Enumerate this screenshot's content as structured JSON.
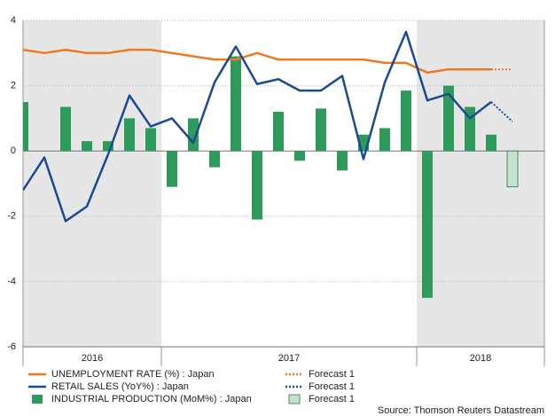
{
  "chart_data": {
    "type": "bar",
    "categories": [
      "2016",
      "2016",
      "2016",
      "2016",
      "2016",
      "2016",
      "2016",
      "2017",
      "2017",
      "2017",
      "2017",
      "2017",
      "2017",
      "2017",
      "2017",
      "2017",
      "2017",
      "2017",
      "2017",
      "2018",
      "2018",
      "2018",
      "2018",
      "2018"
    ],
    "ylim": [
      -6,
      4
    ],
    "yticks": [
      -6,
      -4,
      -2,
      0,
      2,
      4
    ],
    "grid": true,
    "series": [
      {
        "name": "UNEMPLOYMENT RATE (%) : Japan",
        "kind": "line",
        "style": "solid",
        "color": "#f07820",
        "values": [
          3.1,
          3.0,
          3.1,
          3.0,
          3.0,
          3.1,
          3.1,
          3.0,
          2.9,
          2.8,
          2.8,
          3.0,
          2.8,
          2.8,
          2.8,
          2.8,
          2.8,
          2.7,
          2.7,
          2.4,
          2.5,
          2.5,
          2.5,
          null
        ]
      },
      {
        "name": "RETAIL SALES (YoY%) : Japan",
        "kind": "line",
        "style": "solid",
        "color": "#1a4a94",
        "values": [
          -1.2,
          -0.2,
          -2.15,
          -1.7,
          -0.1,
          1.7,
          0.75,
          1.0,
          0.25,
          2.1,
          3.2,
          2.05,
          2.2,
          1.85,
          1.85,
          2.3,
          -0.25,
          2.1,
          3.65,
          1.55,
          1.75,
          1.0,
          1.5,
          null
        ]
      },
      {
        "name": "INDUSTRIAL PRODUCTION (MoM%) : Japan",
        "kind": "bar",
        "style": "solid",
        "color": "#2e9a5c",
        "values": [
          1.5,
          0,
          1.35,
          0.3,
          0.3,
          1.0,
          0.7,
          -1.1,
          1.0,
          -0.5,
          2.9,
          -2.1,
          1.2,
          -0.3,
          1.3,
          -0.6,
          0.5,
          0.7,
          1.85,
          -4.5,
          2.0,
          1.35,
          0.5,
          null
        ]
      },
      {
        "name": "Forecast 1",
        "kind": "line",
        "style": "dotted",
        "color": "#f07820",
        "values": [
          null,
          null,
          null,
          null,
          null,
          null,
          null,
          null,
          null,
          null,
          null,
          null,
          null,
          null,
          null,
          null,
          null,
          null,
          null,
          null,
          null,
          null,
          2.5,
          2.5
        ]
      },
      {
        "name": "Forecast 1",
        "kind": "line",
        "style": "dotted",
        "color": "#1a4a94",
        "values": [
          null,
          null,
          null,
          null,
          null,
          null,
          null,
          null,
          null,
          null,
          null,
          null,
          null,
          null,
          null,
          null,
          null,
          null,
          null,
          null,
          null,
          null,
          1.5,
          0.9
        ]
      },
      {
        "name": "Forecast 1",
        "kind": "bar",
        "style": "outlined",
        "color": "#c6e2cf",
        "values": [
          null,
          null,
          null,
          null,
          null,
          null,
          null,
          null,
          null,
          null,
          null,
          null,
          null,
          null,
          null,
          null,
          null,
          null,
          null,
          null,
          null,
          null,
          null,
          -1.1
        ]
      }
    ],
    "source": "Source: Thomson Reuters Datastream"
  }
}
